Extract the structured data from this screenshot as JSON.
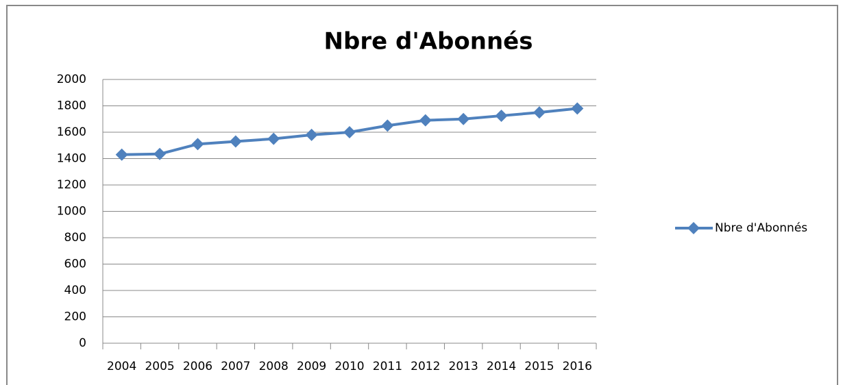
{
  "chart_data": {
    "type": "line",
    "title": "Nbre d'Abonnés",
    "categories": [
      "2004",
      "2005",
      "2006",
      "2007",
      "2008",
      "2009",
      "2010",
      "2011",
      "2012",
      "2013",
      "2014",
      "2015",
      "2016"
    ],
    "series": [
      {
        "name": "Nbre d'Abonnés",
        "color": "#4f81bd",
        "values": [
          1430,
          1435,
          1510,
          1530,
          1550,
          1580,
          1600,
          1650,
          1690,
          1700,
          1725,
          1750,
          1780
        ]
      }
    ],
    "ylim": [
      0,
      2000
    ],
    "yticks": [
      0,
      200,
      400,
      600,
      800,
      1000,
      1200,
      1400,
      1600,
      1800,
      2000
    ],
    "grid": true,
    "legend": "right"
  }
}
